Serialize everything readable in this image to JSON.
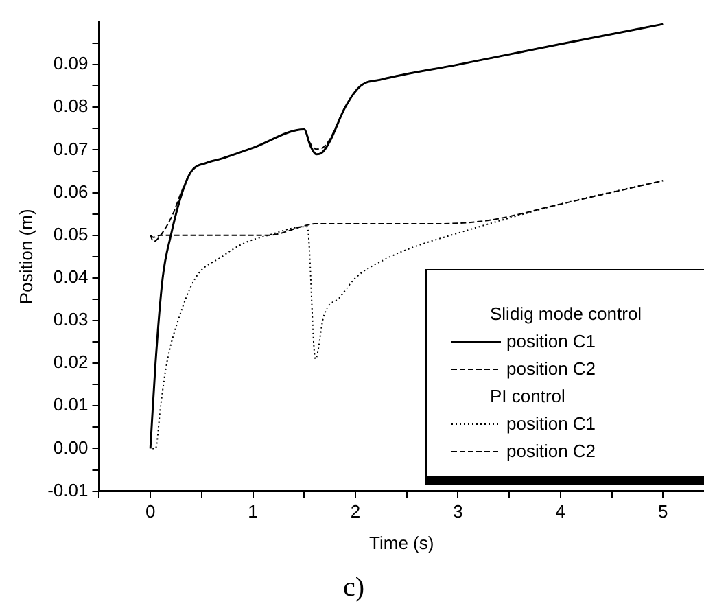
{
  "chart_data": {
    "type": "line",
    "xlabel": "Time (s)",
    "ylabel": "Position (m)",
    "annotations": [
      "Slidig mode control",
      "PI control",
      "c)"
    ],
    "xlim": [
      -0.5,
      5.4
    ],
    "xticks": [
      {
        "value": -0.5,
        "label": null
      },
      0,
      {
        "value": 0.5,
        "label": null
      },
      1,
      {
        "value": 1.5,
        "label": null
      },
      2,
      {
        "value": 2.5,
        "label": null
      },
      3,
      {
        "value": 3.5,
        "label": null
      },
      4,
      {
        "value": 4.5,
        "label": null
      },
      5
    ],
    "ylim": [
      -0.01,
      0.1
    ],
    "yticks": [
      {
        "value": -0.01,
        "label": "-0.01"
      },
      {
        "value": -0.005,
        "label": null
      },
      {
        "value": 0,
        "label": "0.00"
      },
      {
        "value": 0.005,
        "label": null
      },
      {
        "value": 0.01,
        "label": "0.01"
      },
      {
        "value": 0.015,
        "label": null
      },
      {
        "value": 0.02,
        "label": "0.02"
      },
      {
        "value": 0.025,
        "label": null
      },
      {
        "value": 0.03,
        "label": "0.03"
      },
      {
        "value": 0.035,
        "label": null
      },
      {
        "value": 0.04,
        "label": "0.04"
      },
      {
        "value": 0.045,
        "label": null
      },
      {
        "value": 0.05,
        "label": "0.05"
      },
      {
        "value": 0.055,
        "label": null
      },
      {
        "value": 0.06,
        "label": "0.06"
      },
      {
        "value": 0.065,
        "label": null
      },
      {
        "value": 0.07,
        "label": "0.07"
      },
      {
        "value": 0.075,
        "label": null
      },
      {
        "value": 0.08,
        "label": "0.08"
      },
      {
        "value": 0.085,
        "label": null
      },
      {
        "value": 0.09,
        "label": "0.09"
      },
      {
        "value": 0.095,
        "label": null
      }
    ],
    "grid": false,
    "legend": "bottom right",
    "marker": "none",
    "series": [
      {
        "name": "position C1",
        "color": "#000000",
        "line_style": "solid",
        "x": [
          0,
          0.05,
          0.12,
          0.2,
          0.31,
          0.4,
          0.55,
          0.7,
          1.0,
          1.5,
          1.56,
          1.62,
          1.68,
          1.75,
          1.9,
          2.05,
          2.25,
          3.0,
          4.0,
          5.0
        ],
        "values": [
          0,
          0.02,
          0.04,
          0.05,
          0.06,
          0.065,
          0.067,
          0.068,
          0.0705,
          0.0748,
          0.071,
          0.069,
          0.0695,
          0.072,
          0.08,
          0.085,
          0.0865,
          0.09,
          0.0948,
          0.0995
        ]
      },
      {
        "name": "position C2",
        "color": "#000000",
        "line_style": "dashed",
        "x": [
          0,
          0.03,
          0.1,
          0.22,
          0.3,
          0.4,
          0.55,
          0.7,
          1.0,
          1.5,
          1.56,
          1.62,
          1.68,
          1.75,
          1.9,
          2.05,
          2.25,
          3.0,
          4.0,
          5.0
        ],
        "values": [
          0.05,
          0.0485,
          0.05,
          0.055,
          0.06,
          0.065,
          0.067,
          0.068,
          0.0705,
          0.0748,
          0.0715,
          0.0702,
          0.0705,
          0.0725,
          0.08,
          0.085,
          0.0865,
          0.09,
          0.0948,
          0.0995
        ]
      },
      {
        "name": "position C1",
        "color": "#000000",
        "line_style": "dotted",
        "x": [
          0.02,
          0.05,
          0.1,
          0.16,
          0.27,
          0.44,
          0.7,
          0.9,
          1.15,
          1.5,
          1.53,
          1.61,
          1.69,
          1.85,
          2.0,
          2.3,
          2.6,
          3.0,
          3.35,
          4.0,
          5.0
        ],
        "values": [
          0,
          0,
          0.01,
          0.02,
          0.03,
          0.04,
          0.045,
          0.048,
          0.05,
          0.052,
          0.052,
          0.021,
          0.031,
          0.0355,
          0.04,
          0.0445,
          0.0475,
          0.0505,
          0.053,
          0.0573,
          0.0628
        ]
      },
      {
        "name": "position C2",
        "color": "#000000",
        "line_style": "dashed",
        "x": [
          0,
          0.03,
          0.1,
          1.15,
          1.5,
          1.6,
          2.8,
          3.3,
          4.0,
          5.0
        ],
        "values": [
          0.05,
          0.0495,
          0.05,
          0.05,
          0.0522,
          0.0527,
          0.0527,
          0.0535,
          0.0573,
          0.0628
        ]
      }
    ]
  }
}
